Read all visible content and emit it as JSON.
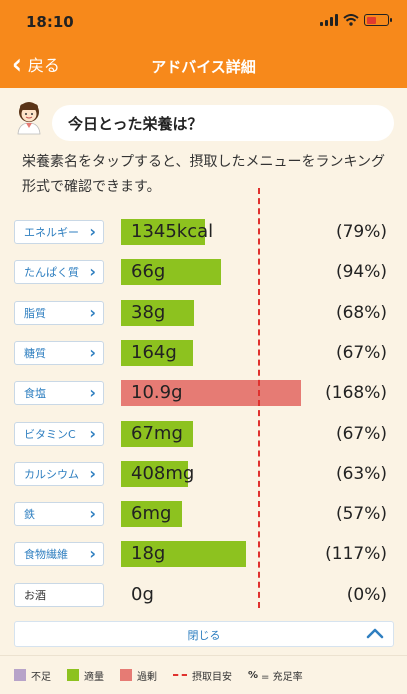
{
  "status_bar": {
    "time": "18:10"
  },
  "nav": {
    "back_label": "戻る",
    "title": "アドバイス詳細"
  },
  "bubble": {
    "text": "今日とった栄養は？"
  },
  "description": "栄養素名をタップすると、摂取したメニューをランキング形式で確認できます。",
  "nutrients": [
    {
      "name": "エネルギー",
      "value": "1345kcal",
      "percent": "(79%)",
      "status": "adequate",
      "level": 79
    },
    {
      "name": "たんぱく質",
      "value": "66g",
      "percent": "(94%)",
      "status": "adequate",
      "level": 94
    },
    {
      "name": "脂質",
      "value": "38g",
      "percent": "(68%)",
      "status": "adequate",
      "level": 68
    },
    {
      "name": "糖質",
      "value": "164g",
      "percent": "(67%)",
      "status": "adequate",
      "level": 67
    },
    {
      "name": "食塩",
      "value": "10.9g",
      "percent": "(168%)",
      "status": "excess",
      "level": 168
    },
    {
      "name": "ビタミンC",
      "value": "67mg",
      "percent": "(67%)",
      "status": "adequate",
      "level": 67
    },
    {
      "name": "カルシウム",
      "value": "408mg",
      "percent": "(63%)",
      "status": "adequate",
      "level": 63
    },
    {
      "name": "鉄",
      "value": "6mg",
      "percent": "(57%)",
      "status": "adequate",
      "level": 57
    },
    {
      "name": "食物繊維",
      "value": "18g",
      "percent": "(117%)",
      "status": "adequate",
      "level": 117
    },
    {
      "name": "お酒",
      "value": "0g",
      "percent": "(0%)",
      "status": "none",
      "level": 0,
      "tappable": false
    }
  ],
  "close_label": "閉じる",
  "legend": {
    "shortage": "不足",
    "adequate": "適量",
    "excess": "過剰",
    "target": "摂取目安",
    "percent_symbol": "%",
    "percent_meaning": "= 充足率"
  },
  "colors": {
    "header": "#f7891b",
    "background": "#fbf3e4",
    "shortage": "#b7a3c9",
    "adequate": "#8dc21f",
    "excess": "#e67b74",
    "target_line": "#e0312e",
    "link": "#2f7fc0"
  },
  "icons": {
    "back": "chevron-left-icon",
    "row_arrow": "chevron-right-icon",
    "collapse": "chevron-up-icon",
    "avatar": "nutritionist-avatar-icon"
  }
}
